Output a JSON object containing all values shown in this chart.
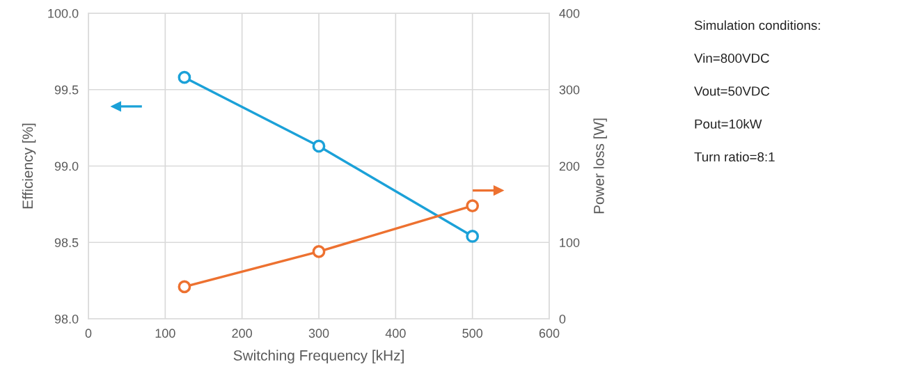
{
  "chart_data": {
    "type": "line",
    "xlabel": "Switching Frequency [kHz]",
    "ylabel": "Efficiency [%]",
    "y2label": "Power loss [W]",
    "x": [
      125,
      300,
      500
    ],
    "series": [
      {
        "color": "#1ba1d8",
        "values": [
          99.58,
          99.13,
          98.54
        ]
      },
      {
        "color": "#ed7130",
        "values": [
          42,
          88,
          148
        ],
        "axis": "y2"
      }
    ],
    "xlim": [
      0,
      600
    ],
    "xticks": [
      0,
      100,
      200,
      300,
      400,
      500,
      600
    ],
    "ylim": [
      98.0,
      100.0
    ],
    "yticks": [
      {
        "value": 98.0,
        "label": "98.0"
      },
      {
        "value": 98.5,
        "label": "98.5"
      },
      {
        "value": 99.0,
        "label": "99.0"
      },
      {
        "value": 99.5,
        "label": "99.5"
      },
      {
        "value": 100.0,
        "label": "100.0"
      }
    ],
    "y2lim": [
      0,
      400
    ],
    "y2ticks": [
      0,
      100,
      200,
      300,
      400
    ],
    "grid": true,
    "marker": "circle",
    "line_style": "solid",
    "annotations": [
      "Simulation conditions:",
      "Vin=800VDC",
      "Vout=50VDC",
      "Pout=10kW",
      "Turn ratio=8:1"
    ]
  }
}
